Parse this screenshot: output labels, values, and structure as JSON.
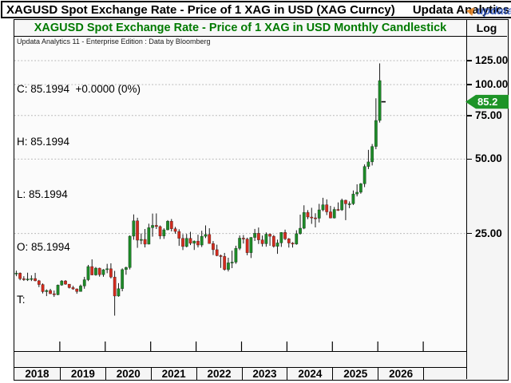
{
  "title_bar": {
    "title": "XAGUSD Spot Exchange Rate - Price of 1 XAG in USD (XAG Curncy)",
    "brand": "Updata Analytics",
    "logo_text": "updata"
  },
  "chart_header": {
    "title": "XAGUSD Spot Exchange Rate - Price of 1 XAG in USD Monthly Candlestick",
    "scale_label": "Log"
  },
  "watermark": "Updata Analytics 11 - Enterprise Edition : Data by Bloomberg",
  "quote_panel": {
    "close_line": "C: 85.1994  +0.0000 (0%)",
    "high_line": "H: 85.1994",
    "low_line": "L: 85.1994",
    "open_line": "O: 85.1994",
    "t_line": "T:"
  },
  "price_badge": {
    "value": "85.2",
    "color": "#1d9427"
  },
  "colors": {
    "up": "#1d8a28",
    "down": "#d22b1e",
    "wick": "#000000",
    "grid": "#b5b5b5",
    "title_green": "#007a00"
  },
  "y_axis": {
    "scale": "log",
    "ticks": [
      {
        "value": 125,
        "label": "125.00"
      },
      {
        "value": 100,
        "label": "100.00"
      },
      {
        "value": 75,
        "label": "75.00"
      },
      {
        "value": 50,
        "label": "50.00"
      },
      {
        "value": 25,
        "label": "25.00"
      }
    ]
  },
  "x_axis": {
    "cells": [
      "2018",
      "2019",
      "2020",
      "2021",
      "2022",
      "2023",
      "2024",
      "2025",
      "2026",
      ""
    ]
  },
  "chart_data": {
    "type": "candlestick",
    "symbol": "XAGUSD",
    "interval": "monthly",
    "scale": "log",
    "title": "XAGUSD Spot Exchange Rate - Price of 1 XAG in USD Monthly Candlestick",
    "last_price": 85.1994,
    "y_ticks": [
      125,
      100,
      75,
      50,
      25
    ],
    "x_years": [
      2018,
      2019,
      2020,
      2021,
      2022,
      2023,
      2024,
      2025,
      2026
    ],
    "candles": [
      [
        "2018-01",
        17.15,
        17.7,
        16.8,
        17.29
      ],
      [
        "2018-02",
        17.29,
        17.4,
        16.18,
        16.41
      ],
      [
        "2018-03",
        16.41,
        16.8,
        16.08,
        16.27
      ],
      [
        "2018-04",
        16.27,
        17.36,
        16.07,
        16.37
      ],
      [
        "2018-05",
        16.37,
        16.93,
        16.06,
        16.44
      ],
      [
        "2018-06",
        16.44,
        17.33,
        16.02,
        16.1
      ],
      [
        "2018-07",
        16.1,
        16.23,
        15.18,
        15.55
      ],
      [
        "2018-08",
        15.55,
        15.71,
        14.31,
        14.55
      ],
      [
        "2018-09",
        14.55,
        14.86,
        13.96,
        14.71
      ],
      [
        "2018-10",
        14.71,
        14.93,
        14.23,
        14.27
      ],
      [
        "2018-11",
        14.27,
        14.7,
        13.86,
        14.14
      ],
      [
        "2018-12",
        14.14,
        15.55,
        14.07,
        15.47
      ],
      [
        "2019-01",
        15.47,
        16.2,
        15.37,
        16.07
      ],
      [
        "2019-02",
        16.07,
        16.21,
        15.51,
        15.6
      ],
      [
        "2019-03",
        15.6,
        15.62,
        14.99,
        15.11
      ],
      [
        "2019-04",
        15.11,
        15.35,
        14.81,
        14.92
      ],
      [
        "2019-05",
        14.92,
        15.0,
        14.27,
        14.57
      ],
      [
        "2019-06",
        14.57,
        15.55,
        14.55,
        15.34
      ],
      [
        "2019-07",
        15.34,
        16.69,
        14.95,
        16.26
      ],
      [
        "2019-08",
        16.26,
        18.66,
        16.05,
        18.38
      ],
      [
        "2019-09",
        18.38,
        19.65,
        16.94,
        17.0
      ],
      [
        "2019-10",
        17.0,
        18.3,
        16.88,
        18.11
      ],
      [
        "2019-11",
        18.11,
        18.19,
        16.73,
        17.04
      ],
      [
        "2019-12",
        17.04,
        17.95,
        16.71,
        17.85
      ],
      [
        "2020-01",
        17.85,
        18.85,
        17.28,
        18.01
      ],
      [
        "2020-02",
        18.01,
        18.94,
        16.45,
        16.67
      ],
      [
        "2020-03",
        16.67,
        17.65,
        11.64,
        13.97
      ],
      [
        "2020-04",
        13.97,
        15.75,
        13.88,
        14.96
      ],
      [
        "2020-05",
        14.96,
        18.07,
        14.6,
        17.87
      ],
      [
        "2020-06",
        17.87,
        18.37,
        17.03,
        18.21
      ],
      [
        "2020-07",
        18.21,
        24.55,
        17.89,
        24.39
      ],
      [
        "2020-08",
        24.39,
        29.86,
        23.58,
        28.14
      ],
      [
        "2020-09",
        28.14,
        28.95,
        21.88,
        23.49
      ],
      [
        "2020-10",
        23.49,
        25.0,
        22.62,
        23.66
      ],
      [
        "2020-11",
        23.66,
        26.07,
        21.96,
        22.64
      ],
      [
        "2020-12",
        22.64,
        27.39,
        22.58,
        26.4
      ],
      [
        "2021-01",
        26.4,
        30.1,
        24.28,
        26.97
      ],
      [
        "2021-02",
        26.97,
        30.14,
        26.07,
        26.67
      ],
      [
        "2021-03",
        26.67,
        26.93,
        23.74,
        24.42
      ],
      [
        "2021-04",
        24.42,
        26.25,
        23.78,
        25.87
      ],
      [
        "2021-05",
        25.87,
        28.32,
        25.76,
        28.03
      ],
      [
        "2021-06",
        28.03,
        28.61,
        25.49,
        26.13
      ],
      [
        "2021-07",
        26.13,
        26.58,
        24.96,
        25.48
      ],
      [
        "2021-08",
        25.48,
        26.01,
        22.29,
        23.9
      ],
      [
        "2021-09",
        23.9,
        24.85,
        21.43,
        22.15
      ],
      [
        "2021-10",
        22.15,
        24.9,
        21.98,
        23.9
      ],
      [
        "2021-11",
        23.9,
        25.41,
        22.44,
        22.82
      ],
      [
        "2021-12",
        22.82,
        23.44,
        21.45,
        23.29
      ],
      [
        "2022-01",
        23.29,
        24.72,
        21.96,
        22.46
      ],
      [
        "2022-02",
        22.46,
        25.65,
        22.04,
        24.36
      ],
      [
        "2022-03",
        24.36,
        26.95,
        23.95,
        24.78
      ],
      [
        "2022-04",
        24.78,
        26.25,
        22.74,
        22.76
      ],
      [
        "2022-05",
        22.76,
        23.29,
        20.46,
        21.51
      ],
      [
        "2022-06",
        21.51,
        22.53,
        20.23,
        20.35
      ],
      [
        "2022-07",
        20.35,
        20.54,
        18.15,
        20.2
      ],
      [
        "2022-08",
        20.2,
        20.87,
        17.7,
        17.88
      ],
      [
        "2022-09",
        17.88,
        19.95,
        17.56,
        19.03
      ],
      [
        "2022-10",
        19.03,
        21.31,
        18.11,
        19.15
      ],
      [
        "2022-11",
        19.15,
        22.31,
        18.85,
        21.78
      ],
      [
        "2022-12",
        21.78,
        24.55,
        21.42,
        23.95
      ],
      [
        "2023-01",
        23.95,
        24.64,
        22.77,
        23.74
      ],
      [
        "2023-02",
        23.74,
        24.05,
        20.42,
        20.91
      ],
      [
        "2023-03",
        20.91,
        24.18,
        19.9,
        24.1
      ],
      [
        "2023-04",
        24.1,
        26.09,
        23.32,
        25.05
      ],
      [
        "2023-05",
        25.05,
        26.43,
        22.68,
        23.56
      ],
      [
        "2023-06",
        23.56,
        24.53,
        22.14,
        22.73
      ],
      [
        "2023-07",
        22.73,
        25.26,
        22.11,
        24.85
      ],
      [
        "2023-08",
        24.85,
        25.0,
        22.3,
        24.36
      ],
      [
        "2023-09",
        24.36,
        24.65,
        21.93,
        22.18
      ],
      [
        "2023-10",
        22.18,
        23.62,
        20.69,
        22.91
      ],
      [
        "2023-11",
        22.91,
        25.3,
        22.07,
        25.26
      ],
      [
        "2023-12",
        25.26,
        25.92,
        23.51,
        23.8
      ],
      [
        "2024-01",
        23.8,
        23.96,
        21.93,
        22.88
      ],
      [
        "2024-02",
        22.88,
        23.07,
        21.94,
        22.66
      ],
      [
        "2024-03",
        22.66,
        25.77,
        22.52,
        24.96
      ],
      [
        "2024-04",
        24.96,
        29.8,
        24.75,
        26.26
      ],
      [
        "2024-05",
        26.26,
        32.51,
        26.03,
        30.41
      ],
      [
        "2024-06",
        30.41,
        31.07,
        28.57,
        29.14
      ],
      [
        "2024-07",
        29.14,
        31.76,
        27.35,
        28.92
      ],
      [
        "2024-08",
        28.92,
        30.19,
        26.47,
        28.82
      ],
      [
        "2024-09",
        28.82,
        32.95,
        27.71,
        31.16
      ],
      [
        "2024-10",
        31.16,
        34.87,
        30.75,
        32.67
      ],
      [
        "2024-11",
        32.67,
        34.35,
        29.68,
        30.58
      ],
      [
        "2024-12",
        30.58,
        32.33,
        28.78,
        28.88
      ],
      [
        "2025-01",
        28.88,
        32.0,
        28.76,
        31.28
      ],
      [
        "2025-02",
        31.28,
        33.39,
        30.84,
        31.15
      ],
      [
        "2025-03",
        31.15,
        34.59,
        30.87,
        34.08
      ],
      [
        "2025-04",
        34.08,
        34.23,
        28.31,
        32.97
      ],
      [
        "2025-05",
        32.97,
        33.7,
        31.65,
        32.98
      ],
      [
        "2025-06",
        32.98,
        37.32,
        32.6,
        36.11
      ],
      [
        "2025-07",
        36.11,
        39.53,
        35.31,
        36.71
      ],
      [
        "2025-08",
        36.71,
        40.0,
        36.21,
        39.71
      ],
      [
        "2025-09",
        39.71,
        47.56,
        38.5,
        46.65
      ],
      [
        "2025-10",
        46.65,
        54.47,
        45.54,
        48.71
      ],
      [
        "2025-11",
        48.71,
        57.5,
        47.1,
        56.2
      ],
      [
        "2025-12",
        56.2,
        88.0,
        54.8,
        71.6
      ],
      [
        "2026-01",
        71.6,
        121.8,
        70.2,
        103.8
      ],
      [
        "2026-02",
        85.1994,
        85.1994,
        85.1994,
        85.1994
      ]
    ]
  }
}
